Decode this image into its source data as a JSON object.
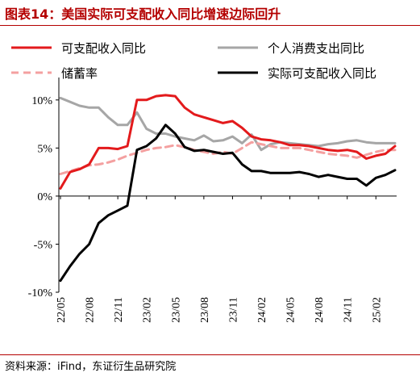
{
  "header": {
    "title": "图表14：美国实际可支配收入同比增速边际回升"
  },
  "footer": {
    "source": "资料来源：iFind，东证衍生品研究院"
  },
  "chart_data": {
    "type": "line",
    "ylim": [
      -10,
      12
    ],
    "y_ticks": [
      10,
      5,
      0,
      -5,
      -10
    ],
    "y_tick_labels": [
      "10%",
      "5%",
      "0%",
      "-5%",
      "-10%"
    ],
    "x_tick_labels": [
      "22/05",
      "22/08",
      "22/11",
      "23/02",
      "23/05",
      "23/08",
      "23/11",
      "24/02",
      "24/05",
      "24/08",
      "24/11",
      "25/02"
    ],
    "x_tick_index": [
      0,
      3,
      6,
      9,
      12,
      15,
      18,
      21,
      24,
      27,
      30,
      33
    ],
    "months": [
      "22/05",
      "22/06",
      "22/07",
      "22/08",
      "22/09",
      "22/10",
      "22/11",
      "22/12",
      "23/01",
      "23/02",
      "23/03",
      "23/04",
      "23/05",
      "23/06",
      "23/07",
      "23/08",
      "23/09",
      "23/10",
      "23/11",
      "23/12",
      "24/01",
      "24/02",
      "24/03",
      "24/04",
      "24/05",
      "24/06",
      "24/07",
      "24/08",
      "24/09",
      "24/10",
      "24/11",
      "24/12",
      "25/01",
      "25/02",
      "25/03",
      "25/04"
    ],
    "legend_placement": "top",
    "series": [
      {
        "name": "可支配收入同比",
        "color": "#e31a1c",
        "dash": "solid",
        "values": [
          0.8,
          2.5,
          2.8,
          3.3,
          5.0,
          5.0,
          4.9,
          5.2,
          10.0,
          10.0,
          10.4,
          10.5,
          10.4,
          9.2,
          8.5,
          8.2,
          7.9,
          7.6,
          7.8,
          7.1,
          6.2,
          5.9,
          5.8,
          5.6,
          5.3,
          5.3,
          5.2,
          5.0,
          4.8,
          4.7,
          4.8,
          4.6,
          3.9,
          4.2,
          4.4,
          5.2
        ]
      },
      {
        "name": "个人消费支出同比",
        "color": "#a6a6a6",
        "dash": "solid",
        "values": [
          10.2,
          9.8,
          9.4,
          9.2,
          9.2,
          8.2,
          7.4,
          7.4,
          8.7,
          7.0,
          6.5,
          6.5,
          6.2,
          6.0,
          5.8,
          6.3,
          5.7,
          5.8,
          6.2,
          5.5,
          6.4,
          4.8,
          5.4,
          5.6,
          5.5,
          5.4,
          5.3,
          5.2,
          5.4,
          5.5,
          5.7,
          5.8,
          5.6,
          5.5,
          5.5,
          5.5
        ]
      },
      {
        "name": "储蓄率",
        "color": "#f4a0a0",
        "dash": "dashed",
        "values": [
          2.3,
          2.6,
          2.9,
          3.2,
          3.3,
          3.5,
          3.8,
          4.2,
          4.5,
          4.8,
          5.0,
          5.1,
          5.3,
          5.1,
          4.8,
          4.6,
          4.4,
          4.6,
          4.4,
          5.0,
          5.6,
          5.4,
          5.2,
          5.0,
          5.0,
          5.0,
          4.8,
          4.6,
          4.4,
          4.3,
          4.2,
          4.0,
          4.3,
          4.6,
          4.8,
          4.8
        ]
      },
      {
        "name": "实际可支配收入同比",
        "color": "#000000",
        "dash": "solid",
        "values": [
          -8.8,
          -7.3,
          -6.0,
          -5.0,
          -2.8,
          -2.0,
          -1.5,
          -1.0,
          4.8,
          5.2,
          6.0,
          7.4,
          6.5,
          5.1,
          4.7,
          4.8,
          4.6,
          4.4,
          4.5,
          3.3,
          2.6,
          2.6,
          2.4,
          2.4,
          2.4,
          2.5,
          2.3,
          2.0,
          2.2,
          2.0,
          1.8,
          1.8,
          1.1,
          1.9,
          2.2,
          2.7
        ]
      }
    ]
  }
}
